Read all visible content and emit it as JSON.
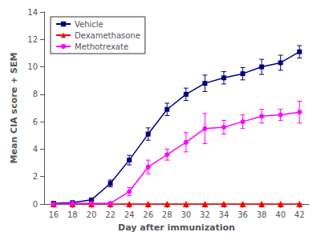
{
  "chart_data": {
    "type": "line",
    "x": [
      16,
      18,
      20,
      22,
      24,
      26,
      28,
      30,
      32,
      34,
      36,
      38,
      40,
      42
    ],
    "series": [
      {
        "name": "Vehicle",
        "color": "#000080",
        "marker": "square",
        "values": [
          0.05,
          0.1,
          0.3,
          1.5,
          3.2,
          5.1,
          6.9,
          8.0,
          8.8,
          9.2,
          9.5,
          10.0,
          10.3,
          11.1
        ],
        "errors": [
          0.05,
          0.05,
          0.1,
          0.25,
          0.35,
          0.45,
          0.45,
          0.45,
          0.6,
          0.45,
          0.45,
          0.55,
          0.55,
          0.45
        ]
      },
      {
        "name": "Dexamethasone",
        "color": "#FF0000",
        "marker": "triangle",
        "values": [
          0.0,
          0.0,
          0.0,
          0.0,
          0.0,
          0.0,
          0.0,
          0.0,
          0.0,
          0.0,
          0.0,
          0.0,
          0.0,
          0.0
        ],
        "errors": [
          0.0,
          0.0,
          0.0,
          0.0,
          0.0,
          0.0,
          0.0,
          0.0,
          0.0,
          0.0,
          0.0,
          0.0,
          0.0,
          0.0
        ]
      },
      {
        "name": "Methotrexate",
        "color": "#FF00FF",
        "marker": "circle",
        "values": [
          0.0,
          0.05,
          0.05,
          0.05,
          0.9,
          2.7,
          3.6,
          4.5,
          5.5,
          5.6,
          6.0,
          6.4,
          6.5,
          6.7
        ],
        "errors": [
          0.0,
          0.05,
          0.05,
          0.05,
          0.3,
          0.5,
          0.4,
          0.7,
          1.1,
          0.5,
          0.5,
          0.5,
          0.4,
          0.8
        ]
      }
    ],
    "xlabel": "Day after immunization",
    "ylabel": "Mean CIA score + SEM",
    "xlim": [
      15,
      43
    ],
    "xticks": [
      16,
      18,
      20,
      22,
      24,
      26,
      28,
      30,
      32,
      34,
      36,
      38,
      40,
      42
    ],
    "ylim": [
      0,
      14
    ],
    "yticks": [
      0,
      2,
      4,
      6,
      8,
      10,
      12,
      14
    ],
    "grid": false,
    "legend": "upper left"
  }
}
